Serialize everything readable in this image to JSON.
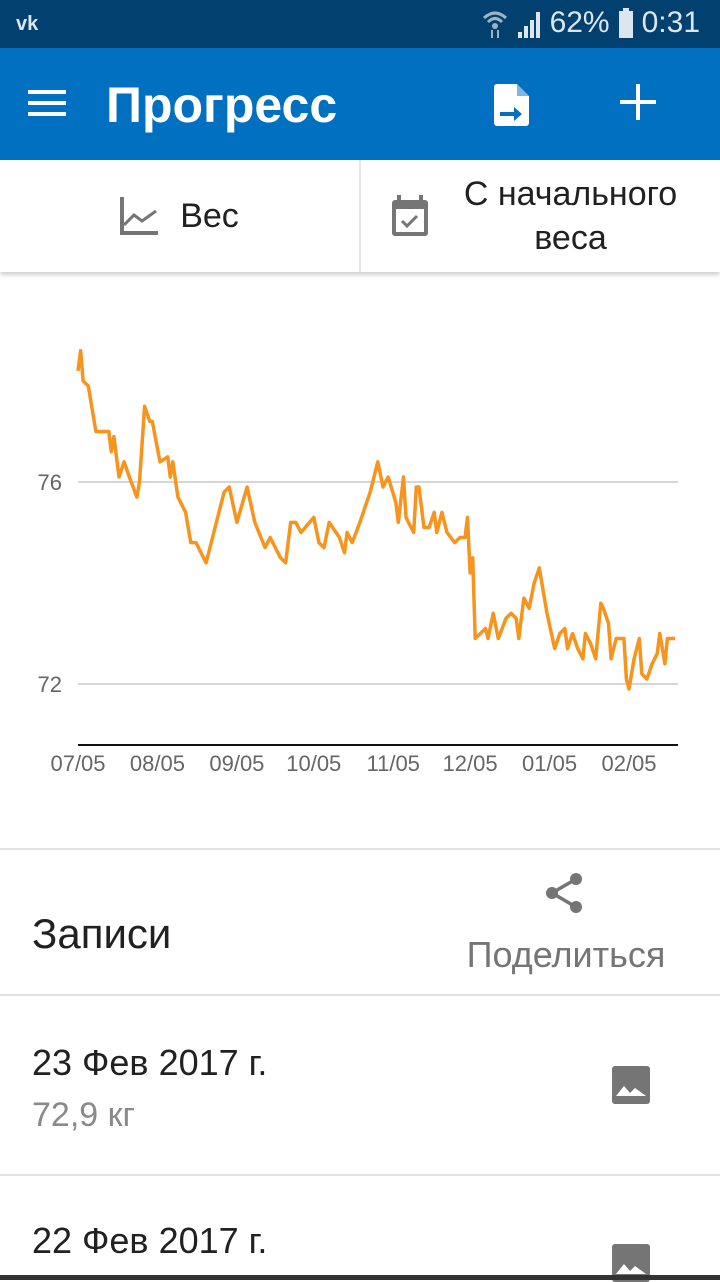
{
  "status_bar": {
    "app_icon": "vk-icon",
    "app_label": "vk",
    "battery": "62%",
    "time": "0:31"
  },
  "app_bar": {
    "title": "Прогресс",
    "icons": [
      "menu-icon",
      "export-file-icon",
      "add-icon"
    ]
  },
  "tabs": [
    {
      "label": "Вес",
      "icon": "line-chart-icon"
    },
    {
      "label": "С начального веса",
      "icon": "calendar-check-icon"
    }
  ],
  "colors": {
    "status_bar": "#02416f",
    "app_bar": "#0170c1",
    "line": "#f7941d",
    "grid": "#d6d6d6"
  },
  "chart_data": {
    "type": "line",
    "title": "",
    "xlabel": "",
    "ylabel": "",
    "x_ticks": [
      "07/05",
      "08/05",
      "09/05",
      "10/05",
      "11/05",
      "12/05",
      "01/05",
      "02/05"
    ],
    "x_tick_dates": [
      "2016-07-05",
      "2016-08-05",
      "2016-09-05",
      "2016-10-05",
      "2016-11-05",
      "2016-12-05",
      "2017-01-05",
      "2017-02-05"
    ],
    "y_ticks": [
      72,
      76
    ],
    "grid": "horizontal",
    "series": [
      {
        "color": "#f7941d",
        "points": [
          [
            "2016-07-05",
            78.2
          ],
          [
            "2016-07-06",
            78.6
          ],
          [
            "2016-07-07",
            78.0
          ],
          [
            "2016-07-09",
            77.9
          ],
          [
            "2016-07-12",
            77.0
          ],
          [
            "2016-07-17",
            77.0
          ],
          [
            "2016-07-18",
            76.6
          ],
          [
            "2016-07-19",
            76.9
          ],
          [
            "2016-07-21",
            76.1
          ],
          [
            "2016-07-23",
            76.4
          ],
          [
            "2016-07-25",
            76.1
          ],
          [
            "2016-07-28",
            75.7
          ],
          [
            "2016-07-29",
            76.0
          ],
          [
            "2016-07-31",
            77.5
          ],
          [
            "2016-08-02",
            77.2
          ],
          [
            "2016-08-03",
            77.2
          ],
          [
            "2016-08-06",
            76.4
          ],
          [
            "2016-08-09",
            76.5
          ],
          [
            "2016-08-10",
            76.1
          ],
          [
            "2016-08-11",
            76.4
          ],
          [
            "2016-08-13",
            75.7
          ],
          [
            "2016-08-16",
            75.4
          ],
          [
            "2016-08-18",
            74.8
          ],
          [
            "2016-08-20",
            74.8
          ],
          [
            "2016-08-24",
            74.4
          ],
          [
            "2016-08-27",
            75.0
          ],
          [
            "2016-08-31",
            75.8
          ],
          [
            "2016-09-02",
            75.9
          ],
          [
            "2016-09-05",
            75.2
          ],
          [
            "2016-09-09",
            75.9
          ],
          [
            "2016-09-12",
            75.2
          ],
          [
            "2016-09-16",
            74.7
          ],
          [
            "2016-09-18",
            74.9
          ],
          [
            "2016-09-22",
            74.5
          ],
          [
            "2016-09-24",
            74.4
          ],
          [
            "2016-09-26",
            75.2
          ],
          [
            "2016-09-28",
            75.2
          ],
          [
            "2016-09-30",
            75.0
          ],
          [
            "2016-10-05",
            75.3
          ],
          [
            "2016-10-07",
            74.8
          ],
          [
            "2016-10-09",
            74.7
          ],
          [
            "2016-10-11",
            75.2
          ],
          [
            "2016-10-15",
            74.9
          ],
          [
            "2016-10-17",
            74.6
          ],
          [
            "2016-10-18",
            75.0
          ],
          [
            "2016-10-20",
            74.8
          ],
          [
            "2016-10-23",
            75.2
          ],
          [
            "2016-10-27",
            75.8
          ],
          [
            "2016-10-30",
            76.4
          ],
          [
            "2016-11-01",
            75.9
          ],
          [
            "2016-11-03",
            76.1
          ],
          [
            "2016-11-06",
            75.6
          ],
          [
            "2016-11-07",
            75.2
          ],
          [
            "2016-11-09",
            76.1
          ],
          [
            "2016-11-10",
            75.3
          ],
          [
            "2016-11-13",
            75.0
          ],
          [
            "2016-11-14",
            75.9
          ],
          [
            "2016-11-15",
            75.9
          ],
          [
            "2016-11-17",
            75.1
          ],
          [
            "2016-11-19",
            75.1
          ],
          [
            "2016-11-21",
            75.4
          ],
          [
            "2016-11-22",
            75.0
          ],
          [
            "2016-11-24",
            75.4
          ],
          [
            "2016-11-26",
            75.0
          ],
          [
            "2016-11-29",
            74.8
          ],
          [
            "2016-12-01",
            74.9
          ],
          [
            "2016-12-03",
            74.9
          ],
          [
            "2016-12-04",
            75.3
          ],
          [
            "2016-12-05",
            74.2
          ],
          [
            "2016-12-06",
            74.5
          ],
          [
            "2016-12-07",
            72.9
          ],
          [
            "2016-12-09",
            73.0
          ],
          [
            "2016-12-11",
            73.1
          ],
          [
            "2016-12-12",
            72.9
          ],
          [
            "2016-12-14",
            73.4
          ],
          [
            "2016-12-16",
            72.9
          ],
          [
            "2016-12-19",
            73.3
          ],
          [
            "2016-12-21",
            73.4
          ],
          [
            "2016-12-23",
            73.3
          ],
          [
            "2016-12-24",
            72.9
          ],
          [
            "2016-12-26",
            73.7
          ],
          [
            "2016-12-28",
            73.5
          ],
          [
            "2016-12-30",
            74.0
          ],
          [
            "2017-01-01",
            74.3
          ],
          [
            "2017-01-03",
            73.7
          ],
          [
            "2017-01-04",
            73.4
          ],
          [
            "2017-01-07",
            72.7
          ],
          [
            "2017-01-09",
            73.0
          ],
          [
            "2017-01-11",
            73.1
          ],
          [
            "2017-01-12",
            72.7
          ],
          [
            "2017-01-14",
            73.0
          ],
          [
            "2017-01-16",
            72.7
          ],
          [
            "2017-01-18",
            72.5
          ],
          [
            "2017-01-19",
            73.0
          ],
          [
            "2017-01-21",
            72.8
          ],
          [
            "2017-01-23",
            72.5
          ],
          [
            "2017-01-25",
            73.6
          ],
          [
            "2017-01-26",
            73.5
          ],
          [
            "2017-01-28",
            73.2
          ],
          [
            "2017-01-29",
            72.5
          ],
          [
            "2017-01-31",
            72.9
          ],
          [
            "2017-02-03",
            72.9
          ],
          [
            "2017-02-04",
            72.1
          ],
          [
            "2017-02-05",
            71.9
          ],
          [
            "2017-02-07",
            72.5
          ],
          [
            "2017-02-09",
            72.9
          ],
          [
            "2017-02-10",
            72.2
          ],
          [
            "2017-02-12",
            72.1
          ],
          [
            "2017-02-14",
            72.4
          ],
          [
            "2017-02-16",
            72.6
          ],
          [
            "2017-02-17",
            73.0
          ],
          [
            "2017-02-19",
            72.4
          ],
          [
            "2017-02-20",
            72.9
          ],
          [
            "2017-02-22",
            72.9
          ],
          [
            "2017-02-23",
            72.9
          ]
        ]
      }
    ]
  },
  "records": {
    "title": "Записи",
    "share_label": "Поделиться",
    "entries": [
      {
        "date": "23 Фев 2017 г.",
        "weight": "72,9 кг"
      },
      {
        "date": "22 Фев 2017 г."
      }
    ]
  }
}
